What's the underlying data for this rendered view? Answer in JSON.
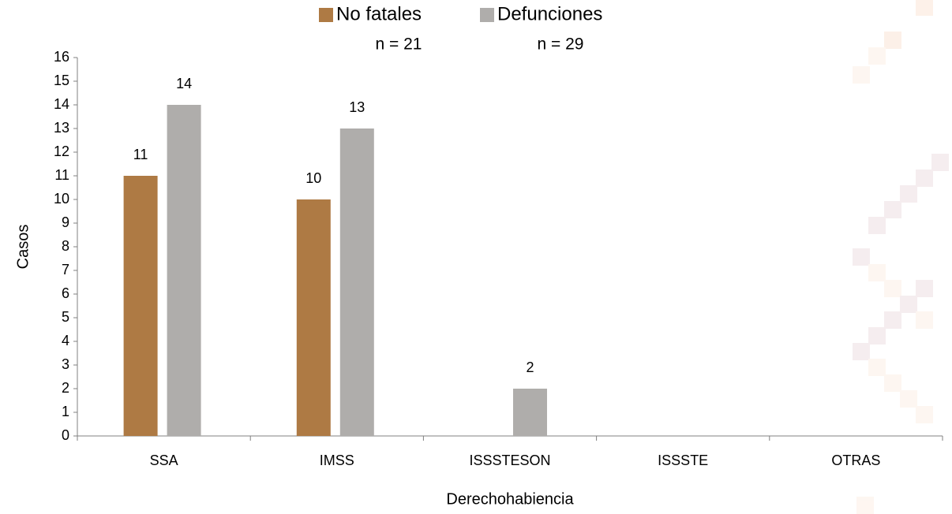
{
  "chart_data": {
    "type": "bar",
    "xlabel": "Derechohabiencia",
    "ylabel": "Casos",
    "categories": [
      "SSA",
      "IMSS",
      "ISSSTESON",
      "ISSSTE",
      "OTRAS"
    ],
    "series": [
      {
        "name": "No fatales",
        "color": "#ae7a44",
        "values": [
          11,
          10,
          0,
          0,
          0
        ],
        "note": "n = 21"
      },
      {
        "name": "Defunciones",
        "color": "#afadab",
        "values": [
          14,
          13,
          2,
          0,
          0
        ],
        "note": "n = 29"
      }
    ],
    "ylim": [
      0,
      16
    ],
    "yticks": [
      0,
      1,
      2,
      3,
      4,
      5,
      6,
      7,
      8,
      9,
      10,
      11,
      12,
      13,
      14,
      15,
      16
    ],
    "legend": "top"
  }
}
